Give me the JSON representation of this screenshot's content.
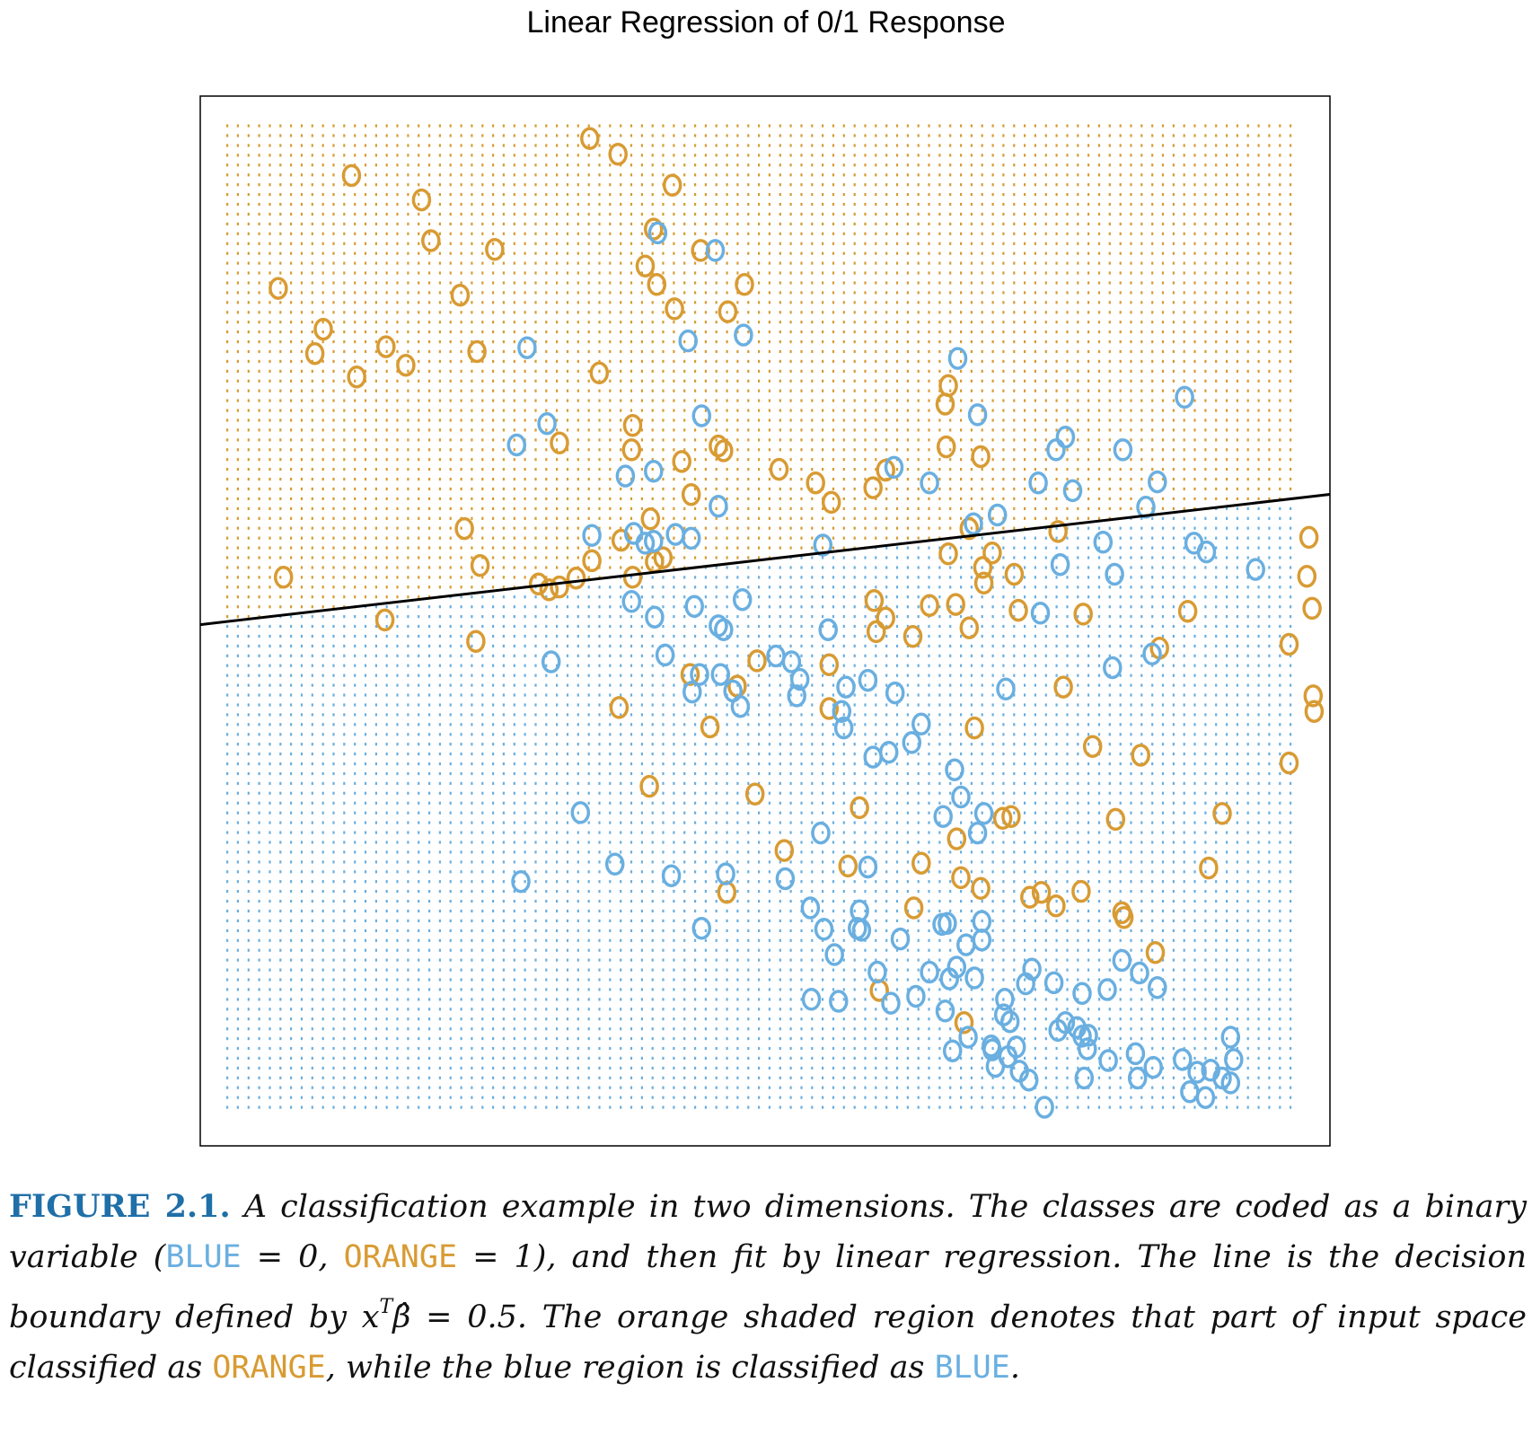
{
  "colors": {
    "blue": "#6aafe0",
    "orange": "#d89b33",
    "boundary": "#000000",
    "label": "#1f6fa8"
  },
  "chart_data": {
    "type": "scatter",
    "title": "Linear Regression of 0/1 Response",
    "xlabel": "",
    "ylabel": "",
    "xlim": [
      0,
      1
    ],
    "ylim": [
      0,
      1
    ],
    "point_marker": "o",
    "grid": "dotted classification mesh (orange above boundary, blue below)",
    "decision_boundary": {
      "slope": 0.124,
      "intercept": 0.501
    },
    "series": [
      {
        "name": "ORANGE",
        "points": [
          [
            0.106,
            0.958
          ],
          [
            0.173,
            0.933
          ],
          [
            0.182,
            0.891
          ],
          [
            0.243,
            0.882
          ],
          [
            0.334,
            0.996
          ],
          [
            0.361,
            0.98
          ],
          [
            0.413,
            0.948
          ],
          [
            0.395,
            0.903
          ],
          [
            0.44,
            0.881
          ],
          [
            0.036,
            0.842
          ],
          [
            0.079,
            0.8
          ],
          [
            0.071,
            0.775
          ],
          [
            0.111,
            0.751
          ],
          [
            0.139,
            0.782
          ],
          [
            0.158,
            0.763
          ],
          [
            0.21,
            0.835
          ],
          [
            0.226,
            0.777
          ],
          [
            0.343,
            0.755
          ],
          [
            0.387,
            0.865
          ],
          [
            0.398,
            0.846
          ],
          [
            0.415,
            0.821
          ],
          [
            0.466,
            0.818
          ],
          [
            0.482,
            0.846
          ],
          [
            0.375,
            0.701
          ],
          [
            0.305,
            0.683
          ],
          [
            0.214,
            0.595
          ],
          [
            0.229,
            0.557
          ],
          [
            0.041,
            0.545
          ],
          [
            0.138,
            0.501
          ],
          [
            0.225,
            0.479
          ],
          [
            0.285,
            0.538
          ],
          [
            0.295,
            0.532
          ],
          [
            0.305,
            0.535
          ],
          [
            0.321,
            0.544
          ],
          [
            0.336,
            0.562
          ],
          [
            0.364,
            0.583
          ],
          [
            0.375,
            0.545
          ],
          [
            0.396,
            0.561
          ],
          [
            0.404,
            0.565
          ],
          [
            0.374,
            0.676
          ],
          [
            0.392,
            0.605
          ],
          [
            0.422,
            0.664
          ],
          [
            0.431,
            0.63
          ],
          [
            0.457,
            0.68
          ],
          [
            0.462,
            0.675
          ],
          [
            0.515,
            0.656
          ],
          [
            0.55,
            0.642
          ],
          [
            0.565,
            0.622
          ],
          [
            0.605,
            0.637
          ],
          [
            0.617,
            0.655
          ],
          [
            0.675,
            0.679
          ],
          [
            0.674,
            0.723
          ],
          [
            0.677,
            0.742
          ],
          [
            0.708,
            0.669
          ],
          [
            0.71,
            0.555
          ],
          [
            0.711,
            0.539
          ],
          [
            0.617,
            0.503
          ],
          [
            0.659,
            0.516
          ],
          [
            0.684,
            0.517
          ],
          [
            0.677,
            0.569
          ],
          [
            0.697,
            0.595
          ],
          [
            0.719,
            0.57
          ],
          [
            0.782,
            0.592
          ],
          [
            0.74,
            0.548
          ],
          [
            0.697,
            0.493
          ],
          [
            0.744,
            0.511
          ],
          [
            0.563,
            0.455
          ],
          [
            0.606,
            0.521
          ],
          [
            0.608,
            0.489
          ],
          [
            0.643,
            0.484
          ],
          [
            0.563,
            0.41
          ],
          [
            0.494,
            0.459
          ],
          [
            0.475,
            0.433
          ],
          [
            0.43,
            0.445
          ],
          [
            0.449,
            0.391
          ],
          [
            0.362,
            0.411
          ],
          [
            0.391,
            0.33
          ],
          [
            0.702,
            0.39
          ],
          [
            0.592,
            0.308
          ],
          [
            0.729,
            0.297
          ],
          [
            0.737,
            0.299
          ],
          [
            0.685,
            0.276
          ],
          [
            0.689,
            0.236
          ],
          [
            0.651,
            0.251
          ],
          [
            0.581,
            0.248
          ],
          [
            0.708,
            0.225
          ],
          [
            0.644,
            0.205
          ],
          [
            0.755,
            0.216
          ],
          [
            0.766,
            0.221
          ],
          [
            0.78,
            0.207
          ],
          [
            0.804,
            0.222
          ],
          [
            0.843,
            0.2
          ],
          [
            0.845,
            0.195
          ],
          [
            0.939,
            0.302
          ],
          [
            0.875,
            0.159
          ],
          [
            0.465,
            0.221
          ],
          [
            0.52,
            0.264
          ],
          [
            0.492,
            0.322
          ],
          [
            0.611,
            0.12
          ],
          [
            0.692,
            0.087
          ],
          [
            0.861,
            0.362
          ],
          [
            0.806,
            0.507
          ],
          [
            0.879,
            0.472
          ],
          [
            0.926,
            0.246
          ],
          [
            1.003,
            0.354
          ],
          [
            1.02,
            0.546
          ],
          [
            1.022,
            0.586
          ],
          [
            1.026,
            0.423
          ],
          [
            1.027,
            0.407
          ],
          [
            1.025,
            0.513
          ],
          [
            1.003,
            0.476
          ],
          [
            0.906,
            0.51
          ],
          [
            0.787,
            0.432
          ],
          [
            0.815,
            0.371
          ],
          [
            0.837,
            0.296
          ]
        ]
      },
      {
        "name": "BLUE",
        "points": [
          [
            0.399,
            0.899
          ],
          [
            0.454,
            0.881
          ],
          [
            0.274,
            0.781
          ],
          [
            0.428,
            0.788
          ],
          [
            0.481,
            0.794
          ],
          [
            0.293,
            0.703
          ],
          [
            0.441,
            0.711
          ],
          [
            0.686,
            0.77
          ],
          [
            0.705,
            0.712
          ],
          [
            0.395,
            0.654
          ],
          [
            0.264,
            0.681
          ],
          [
            0.368,
            0.649
          ],
          [
            0.376,
            0.59
          ],
          [
            0.387,
            0.58
          ],
          [
            0.416,
            0.589
          ],
          [
            0.336,
            0.588
          ],
          [
            0.395,
            0.582
          ],
          [
            0.431,
            0.585
          ],
          [
            0.457,
            0.618
          ],
          [
            0.625,
            0.658
          ],
          [
            0.659,
            0.642
          ],
          [
            0.763,
            0.642
          ],
          [
            0.796,
            0.634
          ],
          [
            0.789,
            0.689
          ],
          [
            0.78,
            0.676
          ],
          [
            0.844,
            0.676
          ],
          [
            0.866,
            0.617
          ],
          [
            0.903,
            0.73
          ],
          [
            0.724,
            0.609
          ],
          [
            0.701,
            0.6
          ],
          [
            0.784,
            0.558
          ],
          [
            0.765,
            0.508
          ],
          [
            0.825,
            0.581
          ],
          [
            0.912,
            0.58
          ],
          [
            0.924,
            0.571
          ],
          [
            0.971,
            0.553
          ],
          [
            0.877,
            0.643
          ],
          [
            0.836,
            0.548
          ],
          [
            0.557,
            0.578
          ],
          [
            0.48,
            0.522
          ],
          [
            0.457,
            0.495
          ],
          [
            0.462,
            0.491
          ],
          [
            0.434,
            0.515
          ],
          [
            0.374,
            0.52
          ],
          [
            0.297,
            0.458
          ],
          [
            0.406,
            0.465
          ],
          [
            0.396,
            0.504
          ],
          [
            0.459,
            0.445
          ],
          [
            0.562,
            0.491
          ],
          [
            0.527,
            0.458
          ],
          [
            0.579,
            0.432
          ],
          [
            0.512,
            0.464
          ],
          [
            0.471,
            0.428
          ],
          [
            0.432,
            0.427
          ],
          [
            0.439,
            0.445
          ],
          [
            0.478,
            0.412
          ],
          [
            0.535,
            0.44
          ],
          [
            0.577,
            0.39
          ],
          [
            0.532,
            0.423
          ],
          [
            0.575,
            0.407
          ],
          [
            0.626,
            0.426
          ],
          [
            0.6,
            0.439
          ],
          [
            0.62,
            0.365
          ],
          [
            0.651,
            0.394
          ],
          [
            0.642,
            0.375
          ],
          [
            0.683,
            0.347
          ],
          [
            0.605,
            0.36
          ],
          [
            0.732,
            0.43
          ],
          [
            0.834,
            0.452
          ],
          [
            0.872,
            0.466
          ],
          [
            0.325,
            0.303
          ],
          [
            0.358,
            0.25
          ],
          [
            0.268,
            0.232
          ],
          [
            0.412,
            0.238
          ],
          [
            0.464,
            0.24
          ],
          [
            0.521,
            0.235
          ],
          [
            0.592,
            0.202
          ],
          [
            0.555,
            0.282
          ],
          [
            0.6,
            0.247
          ],
          [
            0.441,
            0.184
          ],
          [
            0.568,
            0.157
          ],
          [
            0.558,
            0.183
          ],
          [
            0.594,
            0.182
          ],
          [
            0.671,
            0.188
          ],
          [
            0.676,
            0.189
          ],
          [
            0.709,
            0.172
          ],
          [
            0.689,
            0.319
          ],
          [
            0.711,
            0.302
          ],
          [
            0.705,
            0.282
          ],
          [
            0.672,
            0.299
          ],
          [
            0.73,
            0.095
          ],
          [
            0.736,
            0.088
          ],
          [
            0.719,
            0.059
          ],
          [
            0.754,
            0.028
          ],
          [
            0.769,
            0.0
          ],
          [
            0.702,
            0.133
          ],
          [
            0.674,
            0.099
          ],
          [
            0.757,
            0.142
          ],
          [
            0.805,
            0.117
          ],
          [
            0.86,
            0.138
          ],
          [
            0.829,
            0.121
          ],
          [
            0.843,
            0.151
          ],
          [
            0.877,
            0.123
          ],
          [
            0.59,
            0.184
          ],
          [
            0.622,
            0.107
          ],
          [
            0.646,
            0.114
          ],
          [
            0.678,
            0.132
          ],
          [
            0.709,
            0.191
          ],
          [
            0.609,
            0.139
          ],
          [
            0.685,
            0.144
          ],
          [
            0.694,
            0.167
          ],
          [
            0.631,
            0.173
          ],
          [
            0.659,
            0.139
          ],
          [
            0.545,
            0.205
          ],
          [
            0.572,
            0.109
          ],
          [
            0.546,
            0.111
          ],
          [
            0.681,
            0.058
          ],
          [
            0.696,
            0.072
          ],
          [
            0.751,
            0.127
          ],
          [
            0.778,
            0.128
          ],
          [
            0.731,
            0.111
          ],
          [
            0.789,
            0.087
          ],
          [
            0.81,
            0.06
          ],
          [
            0.83,
            0.048
          ],
          [
            0.807,
            0.03
          ],
          [
            0.782,
            0.079
          ],
          [
            0.8,
            0.082
          ],
          [
            0.745,
            0.037
          ],
          [
            0.718,
            0.063
          ],
          [
            0.742,
            0.062
          ],
          [
            0.722,
            0.042
          ],
          [
            0.734,
            0.052
          ],
          [
            0.805,
            0.073
          ],
          [
            0.811,
            0.074
          ],
          [
            0.856,
            0.055
          ],
          [
            0.873,
            0.041
          ],
          [
            0.858,
            0.03
          ],
          [
            0.901,
            0.049
          ],
          [
            0.915,
            0.036
          ],
          [
            0.928,
            0.038
          ],
          [
            0.908,
            0.016
          ],
          [
            0.923,
            0.01
          ],
          [
            0.939,
            0.03
          ],
          [
            0.947,
            0.025
          ],
          [
            0.95,
            0.049
          ],
          [
            0.947,
            0.072
          ]
        ]
      }
    ]
  },
  "caption": {
    "label": "FIGURE 2.1.",
    "part1": " A classification example in two dimensions. The classes are coded as a binary variable (",
    "blue_code": "BLUE",
    "mid1": " = 0, ",
    "orange_code": "ORANGE",
    "mid2": " = 1), and then fit by linear regression. The line is the decision boundary defined by ",
    "math_x": "x",
    "math_sup": "T",
    "math_beta": "β̂",
    "math_eq": " = 0.5",
    "part2": ". The orange shaded region denotes that part of input space classified as ",
    "orange_code2": "ORANGE",
    "part3": ", while the blue region is classified as ",
    "blue_code2": "BLUE",
    "part4": "."
  }
}
